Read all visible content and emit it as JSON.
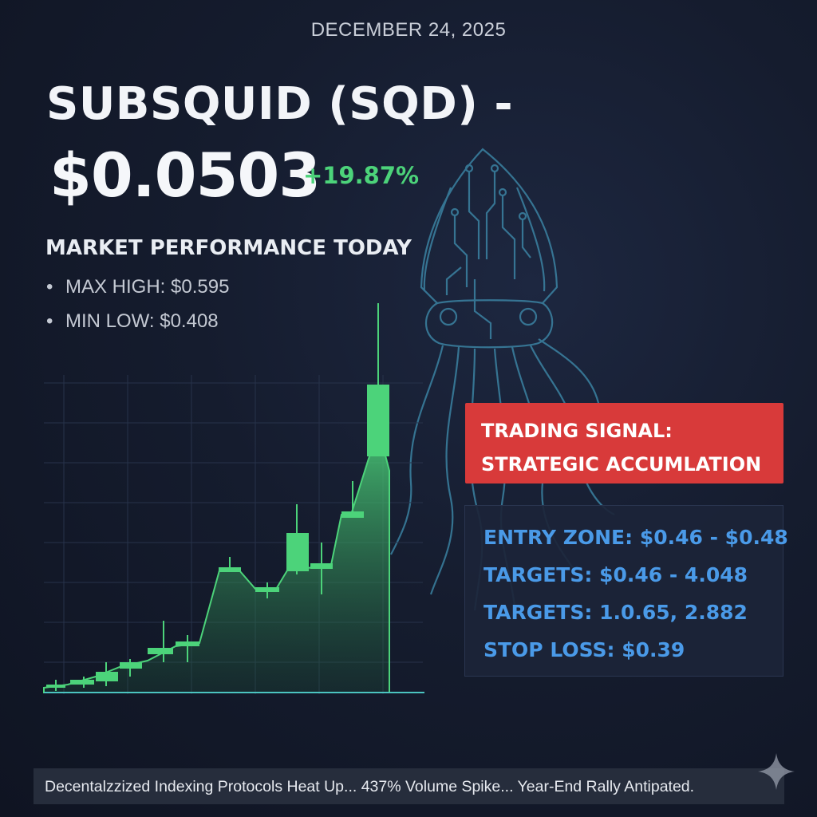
{
  "header": {
    "date": "DECEMBER 24, 2025",
    "title_line": "SUBSQUID (SQD) -",
    "price": "$0.0503",
    "change": "+19.87%"
  },
  "performance": {
    "title": "MARKET PERFORMANCE TODAY",
    "items": [
      {
        "bullet": "•",
        "label": "MAX HIGH: $0.595"
      },
      {
        "bullet": "•",
        "label": "MIN LOW: $0.408"
      }
    ]
  },
  "signal": {
    "line1": "TRADING SIGNAL:",
    "line2": "STRATEGIC ACCUMLATION",
    "color": "#d83a3a"
  },
  "levels": {
    "entry": "ENTRY ZONE: $0.46 - $0.48",
    "targets1": "TARGETS: $0.46 - 4.048",
    "targets2": "TARGETS: 1.0.65, 2.882",
    "stop": "STOP LOSS: $0.39",
    "color": "#4a9ae8"
  },
  "ticker": {
    "text": "Decentalzzized Indexing Protocols Heat Up... 437% Volume Spike... Year-End Rally Antipated."
  },
  "colors": {
    "up": "#4cd37a",
    "background": "#151c2e",
    "squid": "#3f8fb0"
  },
  "icons": {
    "squid": "squid-circuit-icon",
    "sparkle": "sparkle-icon"
  },
  "chart_data": {
    "type": "candlestick",
    "trend": "rising",
    "grid": true,
    "color": "#4cd37a"
  }
}
